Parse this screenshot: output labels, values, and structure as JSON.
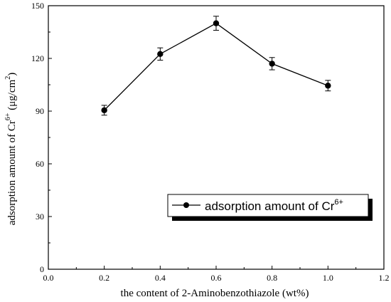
{
  "chart_data": {
    "type": "line",
    "title": "",
    "xlabel": "the content of 2-Aminobenzothiazole (wt%)",
    "ylabel": {
      "prefix": "adsorption amount of Cr",
      "superscript": "6+",
      "unit_open": " (μg/cm",
      "unit_superscript": "2",
      "unit_close": ")"
    },
    "xlim": [
      0.0,
      1.2
    ],
    "ylim": [
      0,
      150
    ],
    "xticks": [
      "0.0",
      "0.2",
      "0.4",
      "0.6",
      "0.8",
      "1.0",
      "1.2"
    ],
    "yticks": [
      "0",
      "30",
      "60",
      "90",
      "120",
      "150"
    ],
    "grid": false,
    "legend_position": "lower-right",
    "series": [
      {
        "name": "adsorption amount of Cr",
        "name_superscript": "6+",
        "x": [
          0.2,
          0.4,
          0.6,
          0.8,
          1.0
        ],
        "y": [
          90.5,
          122.5,
          140,
          117,
          104.5
        ],
        "error": [
          2.8,
          3.5,
          4.0,
          3.5,
          3.0
        ],
        "color": "#000000",
        "marker": "circle"
      }
    ]
  }
}
